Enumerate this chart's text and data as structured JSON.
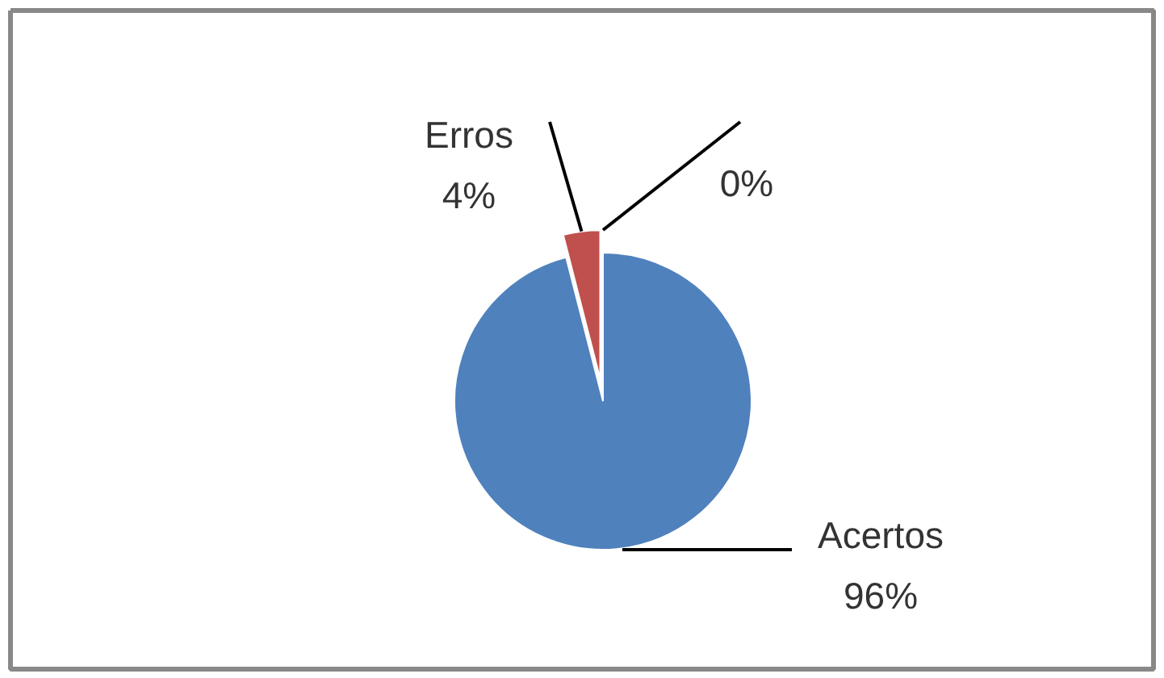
{
  "chart_data": {
    "type": "pie",
    "categories": [
      "Acertos",
      "Erros",
      null
    ],
    "values": [
      96,
      4,
      0
    ],
    "value_labels": [
      "96%",
      "4%",
      "0%"
    ],
    "colors": [
      "#4f81bd",
      "#c0504d",
      "#9bbb59"
    ]
  }
}
